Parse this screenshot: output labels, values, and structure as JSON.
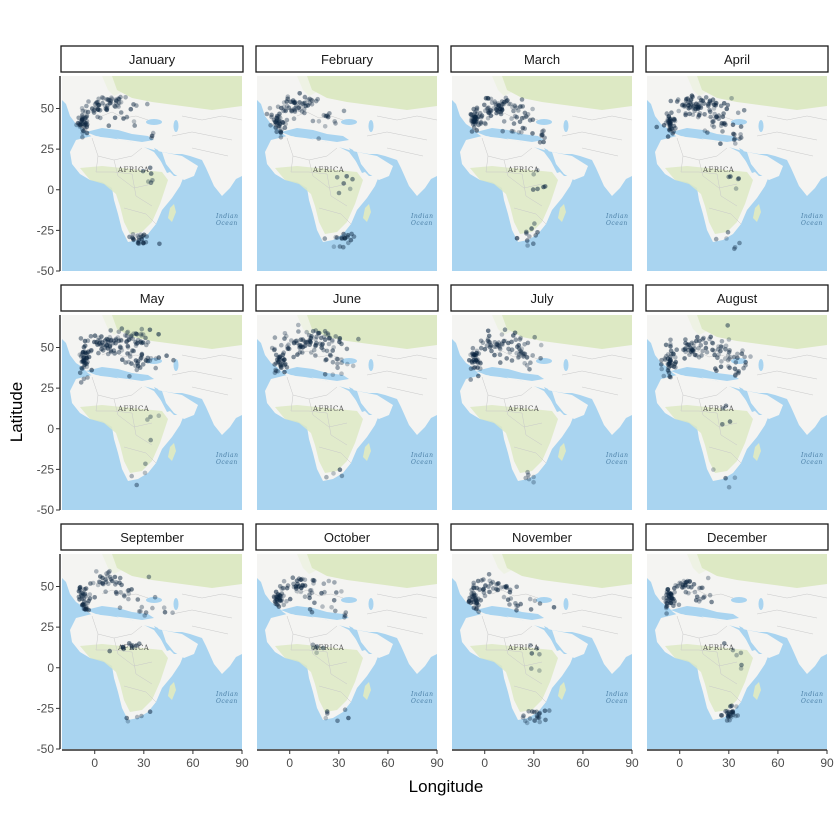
{
  "figure": {
    "xlabel": "Longitude",
    "ylabel": "Latitude",
    "x_ticks": [
      "0",
      "30",
      "60",
      "90"
    ],
    "y_ticks": [
      "50",
      "25",
      "0",
      "-25",
      "-50"
    ],
    "basemap_labels": {
      "africa": "AFRICA",
      "ocean_line1": "Indian",
      "ocean_line2": "Ocean"
    }
  },
  "colors": {
    "ocean": "#a9d4f0",
    "land": "#f4f4f2",
    "vegetation": "#dde9c4",
    "border": "#c9c9c9",
    "points": "#0b2540"
  },
  "chart_data": {
    "type": "scatter",
    "facets": [
      "January",
      "February",
      "March",
      "April",
      "May",
      "June",
      "July",
      "August",
      "September",
      "October",
      "November",
      "December"
    ],
    "xlim": [
      -20,
      90
    ],
    "ylim": [
      -50,
      70
    ],
    "x_ticks": [
      0,
      30,
      60,
      90
    ],
    "y_ticks": [
      -50,
      -25,
      0,
      25,
      50
    ],
    "clusters": {
      "January": [
        {
          "lon": -7,
          "lat": 42,
          "n": 40,
          "sx": 2,
          "sy": 4
        },
        {
          "lon": 2,
          "lat": 51,
          "n": 30,
          "sx": 4,
          "sy": 3
        },
        {
          "lon": 12,
          "lat": 54,
          "n": 20,
          "sx": 5,
          "sy": 2
        },
        {
          "lon": 18,
          "lat": 45,
          "n": 12,
          "sx": 6,
          "sy": 4
        },
        {
          "lon": 28,
          "lat": -30,
          "n": 22,
          "sx": 4,
          "sy": 3
        },
        {
          "lon": 33,
          "lat": 10,
          "n": 6,
          "sx": 2,
          "sy": 4
        },
        {
          "lon": 35,
          "lat": 33,
          "n": 4,
          "sx": 1,
          "sy": 1
        }
      ],
      "February": [
        {
          "lon": -7,
          "lat": 42,
          "n": 40,
          "sx": 2,
          "sy": 4
        },
        {
          "lon": 2,
          "lat": 51,
          "n": 30,
          "sx": 4,
          "sy": 3
        },
        {
          "lon": 10,
          "lat": 54,
          "n": 18,
          "sx": 4,
          "sy": 2
        },
        {
          "lon": 20,
          "lat": 42,
          "n": 12,
          "sx": 6,
          "sy": 4
        },
        {
          "lon": 30,
          "lat": -30,
          "n": 18,
          "sx": 4,
          "sy": 3
        },
        {
          "lon": 33,
          "lat": 5,
          "n": 6,
          "sx": 3,
          "sy": 6
        }
      ],
      "March": [
        {
          "lon": -6,
          "lat": 42,
          "n": 40,
          "sx": 2,
          "sy": 4
        },
        {
          "lon": 3,
          "lat": 50,
          "n": 40,
          "sx": 5,
          "sy": 3
        },
        {
          "lon": 15,
          "lat": 52,
          "n": 25,
          "sx": 6,
          "sy": 3
        },
        {
          "lon": 22,
          "lat": 40,
          "n": 20,
          "sx": 7,
          "sy": 4
        },
        {
          "lon": 35,
          "lat": 33,
          "n": 8,
          "sx": 1,
          "sy": 2
        },
        {
          "lon": 28,
          "lat": -28,
          "n": 12,
          "sx": 4,
          "sy": 3
        },
        {
          "lon": 32,
          "lat": 5,
          "n": 6,
          "sx": 3,
          "sy": 6
        }
      ],
      "April": [
        {
          "lon": -6,
          "lat": 42,
          "n": 40,
          "sx": 2,
          "sy": 4
        },
        {
          "lon": 5,
          "lat": 52,
          "n": 45,
          "sx": 6,
          "sy": 3
        },
        {
          "lon": 20,
          "lat": 50,
          "n": 35,
          "sx": 7,
          "sy": 4
        },
        {
          "lon": 25,
          "lat": 40,
          "n": 20,
          "sx": 6,
          "sy": 4
        },
        {
          "lon": 34,
          "lat": 32,
          "n": 8,
          "sx": 2,
          "sy": 2
        },
        {
          "lon": 33,
          "lat": 10,
          "n": 5,
          "sx": 3,
          "sy": 5
        },
        {
          "lon": 28,
          "lat": -28,
          "n": 6,
          "sx": 4,
          "sy": 3
        }
      ],
      "May": [
        {
          "lon": -6,
          "lat": 42,
          "n": 40,
          "sx": 2,
          "sy": 4
        },
        {
          "lon": 5,
          "lat": 52,
          "n": 50,
          "sx": 6,
          "sy": 3
        },
        {
          "lon": 22,
          "lat": 54,
          "n": 50,
          "sx": 8,
          "sy": 4
        },
        {
          "lon": 30,
          "lat": 42,
          "n": 30,
          "sx": 8,
          "sy": 4
        },
        {
          "lon": 33,
          "lat": 5,
          "n": 4,
          "sx": 3,
          "sy": 6
        },
        {
          "lon": 28,
          "lat": -28,
          "n": 4,
          "sx": 4,
          "sy": 3
        }
      ],
      "June": [
        {
          "lon": -6,
          "lat": 42,
          "n": 35,
          "sx": 2,
          "sy": 4
        },
        {
          "lon": 5,
          "lat": 52,
          "n": 40,
          "sx": 5,
          "sy": 3
        },
        {
          "lon": 22,
          "lat": 54,
          "n": 40,
          "sx": 8,
          "sy": 4
        },
        {
          "lon": 28,
          "lat": 42,
          "n": 20,
          "sx": 7,
          "sy": 4
        },
        {
          "lon": 28,
          "lat": -28,
          "n": 4,
          "sx": 4,
          "sy": 3
        }
      ],
      "July": [
        {
          "lon": -6,
          "lat": 42,
          "n": 35,
          "sx": 2,
          "sy": 4
        },
        {
          "lon": 5,
          "lat": 52,
          "n": 30,
          "sx": 5,
          "sy": 3
        },
        {
          "lon": 20,
          "lat": 52,
          "n": 25,
          "sx": 7,
          "sy": 4
        },
        {
          "lon": 26,
          "lat": 42,
          "n": 18,
          "sx": 7,
          "sy": 4
        },
        {
          "lon": 30,
          "lat": -28,
          "n": 6,
          "sx": 4,
          "sy": 3
        }
      ],
      "August": [
        {
          "lon": -6,
          "lat": 42,
          "n": 35,
          "sx": 2,
          "sy": 4
        },
        {
          "lon": 5,
          "lat": 50,
          "n": 35,
          "sx": 5,
          "sy": 3
        },
        {
          "lon": 20,
          "lat": 50,
          "n": 30,
          "sx": 7,
          "sy": 4
        },
        {
          "lon": 30,
          "lat": 42,
          "n": 25,
          "sx": 7,
          "sy": 4
        },
        {
          "lon": 35,
          "lat": 33,
          "n": 6,
          "sx": 1,
          "sy": 2
        },
        {
          "lon": 30,
          "lat": 10,
          "n": 4,
          "sx": 3,
          "sy": 5
        },
        {
          "lon": 28,
          "lat": -28,
          "n": 4,
          "sx": 4,
          "sy": 3
        }
      ],
      "September": [
        {
          "lon": -6,
          "lat": 42,
          "n": 35,
          "sx": 2,
          "sy": 4
        },
        {
          "lon": 5,
          "lat": 52,
          "n": 25,
          "sx": 5,
          "sy": 3
        },
        {
          "lon": 18,
          "lat": 48,
          "n": 15,
          "sx": 6,
          "sy": 4
        },
        {
          "lon": 28,
          "lat": 38,
          "n": 12,
          "sx": 7,
          "sy": 4
        },
        {
          "lon": 18,
          "lat": 13,
          "n": 10,
          "sx": 4,
          "sy": 2
        },
        {
          "lon": 28,
          "lat": -30,
          "n": 5,
          "sx": 4,
          "sy": 3
        }
      ],
      "October": [
        {
          "lon": -6,
          "lat": 42,
          "n": 35,
          "sx": 2,
          "sy": 4
        },
        {
          "lon": 5,
          "lat": 52,
          "n": 25,
          "sx": 5,
          "sy": 3
        },
        {
          "lon": 15,
          "lat": 48,
          "n": 12,
          "sx": 6,
          "sy": 4
        },
        {
          "lon": 22,
          "lat": 40,
          "n": 10,
          "sx": 6,
          "sy": 4
        },
        {
          "lon": 35,
          "lat": 33,
          "n": 4,
          "sx": 1,
          "sy": 1
        },
        {
          "lon": 18,
          "lat": 13,
          "n": 6,
          "sx": 4,
          "sy": 2
        },
        {
          "lon": 28,
          "lat": -30,
          "n": 6,
          "sx": 4,
          "sy": 3
        }
      ],
      "November": [
        {
          "lon": -6,
          "lat": 42,
          "n": 40,
          "sx": 2,
          "sy": 4
        },
        {
          "lon": 5,
          "lat": 50,
          "n": 25,
          "sx": 5,
          "sy": 3
        },
        {
          "lon": 15,
          "lat": 44,
          "n": 12,
          "sx": 6,
          "sy": 4
        },
        {
          "lon": 28,
          "lat": 38,
          "n": 8,
          "sx": 6,
          "sy": 4
        },
        {
          "lon": 33,
          "lat": 5,
          "n": 6,
          "sx": 3,
          "sy": 6
        },
        {
          "lon": 30,
          "lat": -30,
          "n": 20,
          "sx": 4,
          "sy": 3
        }
      ],
      "December": [
        {
          "lon": -6,
          "lat": 42,
          "n": 40,
          "sx": 2,
          "sy": 4
        },
        {
          "lon": 5,
          "lat": 50,
          "n": 25,
          "sx": 5,
          "sy": 3
        },
        {
          "lon": 15,
          "lat": 44,
          "n": 10,
          "sx": 6,
          "sy": 4
        },
        {
          "lon": 33,
          "lat": 8,
          "n": 6,
          "sx": 3,
          "sy": 6
        },
        {
          "lon": 30,
          "lat": -28,
          "n": 25,
          "sx": 3,
          "sy": 3
        }
      ]
    }
  }
}
